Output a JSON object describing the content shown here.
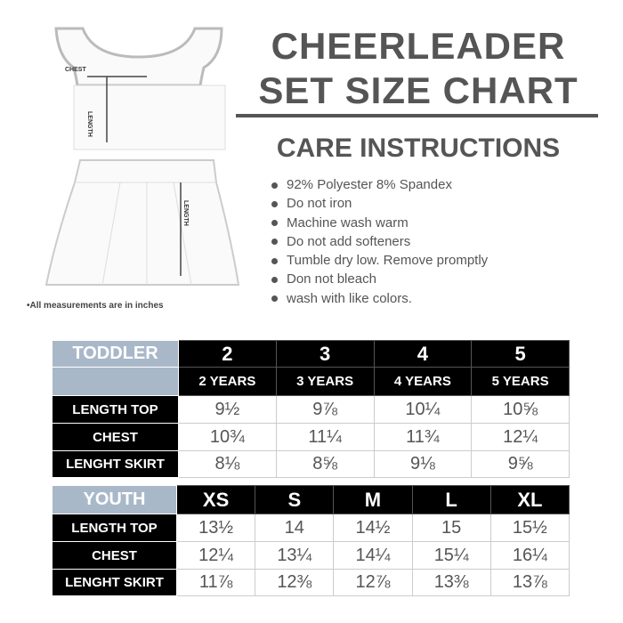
{
  "title": {
    "line1": "CHEERLEADER",
    "line2": "SET SIZE CHART"
  },
  "care": {
    "heading": "CARE INSTRUCTIONS",
    "items": [
      "92% Polyester 8% Spandex",
      "Do not iron",
      "Machine wash warm",
      "Do not add softeners",
      "Tumble dry low. Remove promptly",
      "Don not bleach",
      "wash with like colors."
    ]
  },
  "illustration": {
    "chest_label": "CHEST",
    "length_label": "LENGTH",
    "skirt_length_label": "LENGTH"
  },
  "note": "•All measurements are in inches",
  "colors": {
    "category_bg": "#a9b8c9",
    "header_bg": "#000000",
    "text": "#555555"
  },
  "toddler": {
    "label": "TODDLER",
    "sizes": [
      "2",
      "3",
      "4",
      "5"
    ],
    "ages": [
      "2 YEARS",
      "3 YEARS",
      "4 YEARS",
      "5 YEARS"
    ],
    "rows": [
      {
        "label": "LENGTH TOP",
        "values": [
          "9½",
          "9⅞",
          "10¼",
          "10⅝"
        ]
      },
      {
        "label": "CHEST",
        "values": [
          "10¾",
          "11¼",
          "11¾",
          "12¼"
        ]
      },
      {
        "label": "LENGHT SKIRT",
        "values": [
          "8⅛",
          "8⅝",
          "9⅛",
          "9⅝"
        ]
      }
    ]
  },
  "youth": {
    "label": "YOUTH",
    "sizes": [
      "XS",
      "S",
      "M",
      "L",
      "XL"
    ],
    "rows": [
      {
        "label": "LENGTH TOP",
        "values": [
          "13½",
          "14",
          "14½",
          "15",
          "15½"
        ]
      },
      {
        "label": "CHEST",
        "values": [
          "12¼",
          "13¼",
          "14¼",
          "15¼",
          "16¼"
        ]
      },
      {
        "label": "LENGHT SKIRT",
        "values": [
          "11⅞",
          "12⅜",
          "12⅞",
          "13⅜",
          "13⅞"
        ]
      }
    ]
  }
}
